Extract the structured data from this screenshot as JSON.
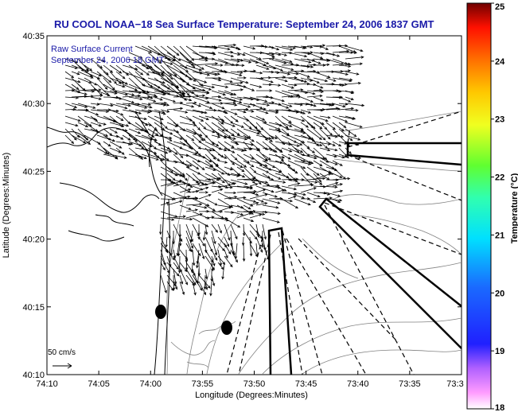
{
  "chart_data": {
    "type": "vector-field",
    "title": "RU COOL  NOAA−18  Sea Surface Temperature:  September 24, 2006 1837 GMT",
    "subtitle_line1": "Raw Surface Current",
    "subtitle_line2": "September 24, 2006 18 GMT",
    "xlabel": "Longitude (Degrees:Minutes)",
    "ylabel": "Latitude (Degrees:Minutes)",
    "xticks": [
      "74:10",
      "74:05",
      "74:00",
      "73:55",
      "73:50",
      "73:45",
      "73:40",
      "73:35",
      "73:3"
    ],
    "yticks": [
      "40:35",
      "40:30",
      "40:25",
      "40:20",
      "40:15",
      "40:10"
    ],
    "xlim_minutes_west": [
      10,
      30
    ],
    "ylim": [
      "40:10",
      "40:35"
    ],
    "scale_label": "50 cm/s",
    "scale_cm_s": 50,
    "colorbar": {
      "label": "Temperature (°C)",
      "min": 18,
      "max": 25,
      "ticks": [
        "25",
        "24",
        "23",
        "22",
        "21",
        "20",
        "19",
        "18"
      ]
    },
    "markers": [
      {
        "lon": "74:01.0",
        "lat": "40:14.4",
        "color": "#000000"
      },
      {
        "lon": "73:57.6",
        "lat": "40:13.5",
        "color": "#000000"
      }
    ],
    "colors": {
      "title": "#1a1aa8",
      "coast": "#000000",
      "arrows": "#000000"
    }
  }
}
